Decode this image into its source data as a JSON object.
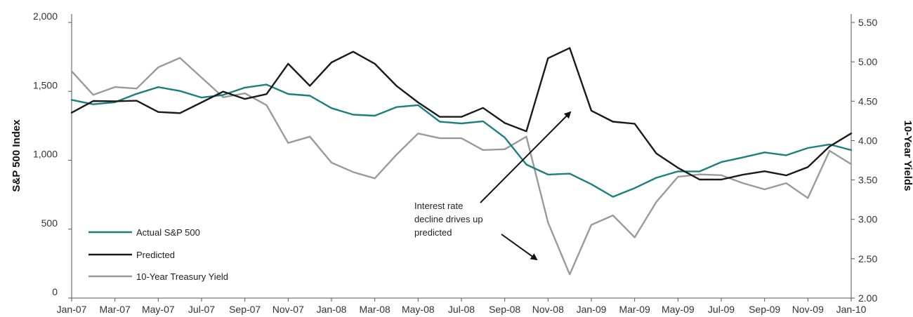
{
  "chart_data": {
    "type": "line",
    "title": "",
    "xlabel": "",
    "ylabel": "S&P  500 Index",
    "ylabel_right": "10-Year Yields",
    "x": [
      "Jan-07",
      "Feb-07",
      "Mar-07",
      "Apr-07",
      "May-07",
      "Jun-07",
      "Jul-07",
      "Aug-07",
      "Sep-07",
      "Oct-07",
      "Nov-07",
      "Dec-07",
      "Jan-08",
      "Feb-08",
      "Mar-08",
      "Apr-08",
      "May-08",
      "Jun-08",
      "Jul-08",
      "Aug-08",
      "Sep-08",
      "Oct-08",
      "Nov-08",
      "Dec-08",
      "Jan-09",
      "Feb-09",
      "Mar-09",
      "Apr-09",
      "May-09",
      "Jun-09",
      "Jul-09",
      "Aug-09",
      "Sep-09",
      "Oct-09",
      "Nov-09",
      "Dec-09",
      "Jan-10"
    ],
    "x_tick_labels": [
      "Jan-07",
      "Mar-07",
      "May-07",
      "Jul-07",
      "Sep-07",
      "Nov-07",
      "Jan-08",
      "Mar-08",
      "May-08",
      "Jul-08",
      "Sep-08",
      "Nov-08",
      "Jan-09",
      "Mar-09",
      "May-09",
      "Jul-09",
      "Sep-09",
      "Nov-09",
      "Jan-10"
    ],
    "ylim": [
      0,
      2000
    ],
    "y_ticks": [
      0,
      500,
      1000,
      1500,
      2000
    ],
    "y_tick_labels": [
      "0",
      "500",
      "1,000",
      "1,500",
      "2,000"
    ],
    "ylim_right": [
      2.0,
      5.5
    ],
    "y_ticks_right": [
      2.0,
      2.5,
      3.0,
      3.5,
      4.0,
      4.5,
      5.0,
      5.5
    ],
    "y_tick_labels_right": [
      "2.00",
      "2.50",
      "3.00",
      "3.50",
      "4.00",
      "4.50",
      "5.00",
      "5.50"
    ],
    "grid": false,
    "legend_position": "bottom-left",
    "series": [
      {
        "name": "Actual S&P 500",
        "axis": "left",
        "color": "#1a7f80",
        "values": [
          1438,
          1406,
          1421,
          1482,
          1531,
          1503,
          1455,
          1474,
          1527,
          1549,
          1481,
          1468,
          1378,
          1331,
          1323,
          1386,
          1400,
          1280,
          1267,
          1283,
          1165,
          969,
          896,
          903,
          826,
          735,
          798,
          873,
          919,
          919,
          987,
          1021,
          1057,
          1036,
          1089,
          1115,
          1074
        ]
      },
      {
        "name": "Predicted",
        "axis": "left",
        "color": "#1a1a1a",
        "values": [
          1345,
          1430,
          1428,
          1432,
          1350,
          1342,
          1420,
          1498,
          1445,
          1480,
          1700,
          1540,
          1710,
          1788,
          1700,
          1540,
          1420,
          1315,
          1315,
          1380,
          1270,
          1210,
          1740,
          1815,
          1360,
          1280,
          1265,
          1050,
          945,
          860,
          860,
          895,
          920,
          890,
          950,
          1100,
          1195
        ]
      },
      {
        "name": "10-Year Treasury Yield",
        "axis": "right",
        "color": "#9a9a9a",
        "values": [
          4.88,
          4.58,
          4.68,
          4.66,
          4.93,
          5.05,
          4.8,
          4.55,
          4.6,
          4.45,
          3.97,
          4.05,
          3.72,
          3.6,
          3.52,
          3.82,
          4.09,
          4.03,
          4.03,
          3.88,
          3.89,
          4.05,
          2.96,
          2.3,
          2.93,
          3.05,
          2.77,
          3.22,
          3.54,
          3.57,
          3.56,
          3.46,
          3.38,
          3.46,
          3.27,
          3.87,
          3.7
        ]
      }
    ],
    "annotations": [
      {
        "lines": [
          "Interest rate",
          "decline drives up",
          "predicted"
        ]
      }
    ]
  }
}
